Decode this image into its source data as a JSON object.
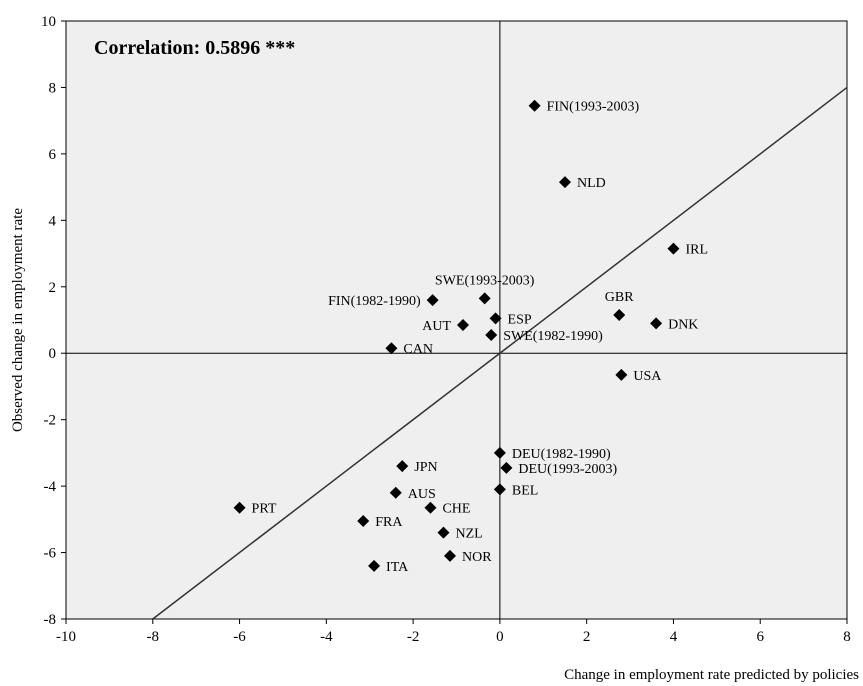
{
  "chart_data": {
    "type": "scatter",
    "annotation": "Correlation: 0.5896 ***",
    "xlabel": "Change in employment rate predicted by policies",
    "ylabel": "Observed change in employment rate",
    "xlim": [
      -10,
      8
    ],
    "ylim": [
      -8,
      10
    ],
    "xticks": [
      -10,
      -8,
      -6,
      -4,
      -2,
      0,
      2,
      4,
      6,
      8
    ],
    "yticks": [
      -8,
      -6,
      -4,
      -2,
      0,
      2,
      4,
      6,
      8,
      10
    ],
    "xtick_labels": [
      "-10",
      "-8",
      "-6",
      "-4",
      "-2",
      "0",
      "2",
      "4",
      "6",
      "8"
    ],
    "ytick_labels": [
      "-8",
      "-6",
      "-4",
      "-2",
      "0",
      "2",
      "4",
      "6",
      "8",
      "10"
    ],
    "fit_line": {
      "x": [
        -8,
        8
      ],
      "y": [
        -8,
        8
      ]
    },
    "grid": false,
    "legend": "none",
    "plot_background": "#efefef",
    "marker_color": "#000000",
    "points": [
      {
        "label": "FIN(1993-2003)",
        "x": 0.8,
        "y": 7.45,
        "label_pos": "right"
      },
      {
        "label": "NLD",
        "x": 1.5,
        "y": 5.15,
        "label_pos": "right"
      },
      {
        "label": "IRL",
        "x": 4.0,
        "y": 3.15,
        "label_pos": "right"
      },
      {
        "label": "SWE(1993-2003)",
        "x": -0.35,
        "y": 1.65,
        "label_pos": "above"
      },
      {
        "label": "FIN(1982-1990)",
        "x": -1.55,
        "y": 1.6,
        "label_pos": "left"
      },
      {
        "label": "GBR",
        "x": 2.75,
        "y": 1.15,
        "label_pos": "above"
      },
      {
        "label": "DNK",
        "x": 3.6,
        "y": 0.9,
        "label_pos": "right"
      },
      {
        "label": "ESP",
        "x": -0.1,
        "y": 1.05,
        "label_pos": "right"
      },
      {
        "label": "AUT",
        "x": -0.85,
        "y": 0.85,
        "label_pos": "left"
      },
      {
        "label": "SWE(1982-1990)",
        "x": -0.2,
        "y": 0.55,
        "label_pos": "right"
      },
      {
        "label": "CAN",
        "x": -2.5,
        "y": 0.15,
        "label_pos": "right"
      },
      {
        "label": "USA",
        "x": 2.8,
        "y": -0.65,
        "label_pos": "right"
      },
      {
        "label": "DEU(1982-1990)",
        "x": 0.0,
        "y": -3.0,
        "label_pos": "right"
      },
      {
        "label": "DEU(1993-2003)",
        "x": 0.15,
        "y": -3.45,
        "label_pos": "right"
      },
      {
        "label": "JPN",
        "x": -2.25,
        "y": -3.4,
        "label_pos": "right"
      },
      {
        "label": "BEL",
        "x": 0.0,
        "y": -4.1,
        "label_pos": "right"
      },
      {
        "label": "AUS",
        "x": -2.4,
        "y": -4.2,
        "label_pos": "right"
      },
      {
        "label": "PRT",
        "x": -6.0,
        "y": -4.65,
        "label_pos": "right"
      },
      {
        "label": "CHE",
        "x": -1.6,
        "y": -4.65,
        "label_pos": "right"
      },
      {
        "label": "FRA",
        "x": -3.15,
        "y": -5.05,
        "label_pos": "right"
      },
      {
        "label": "NZL",
        "x": -1.3,
        "y": -5.4,
        "label_pos": "right"
      },
      {
        "label": "NOR",
        "x": -1.15,
        "y": -6.1,
        "label_pos": "right"
      },
      {
        "label": "ITA",
        "x": -2.9,
        "y": -6.4,
        "label_pos": "right"
      }
    ]
  }
}
